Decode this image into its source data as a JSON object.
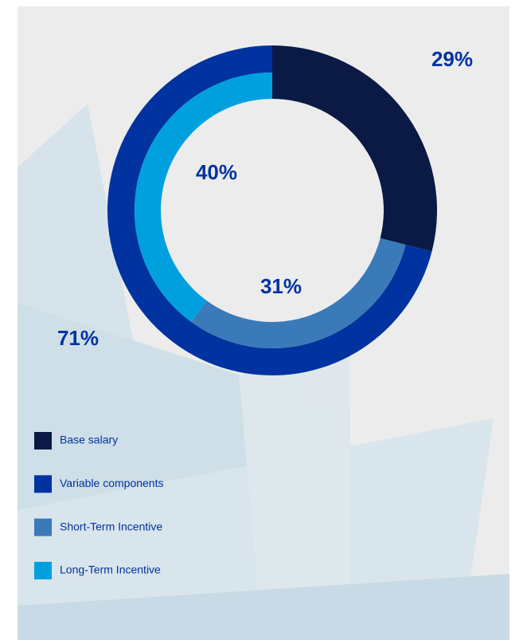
{
  "chart_data": {
    "type": "nested-donut",
    "rings": [
      {
        "categories": [
          "Base salary",
          "Variable components"
        ],
        "values": [
          29,
          71
        ],
        "value_labels": [
          "29%",
          "71%"
        ],
        "colors": [
          "#0a1a45",
          "#0033a0"
        ]
      },
      {
        "categories": [
          "Short-Term Incentive",
          "Long-Term Incentive"
        ],
        "values": [
          31,
          40
        ],
        "value_labels": [
          "31%",
          "40%"
        ],
        "colors": [
          "#3a7ab8",
          "#00a0df"
        ]
      }
    ]
  }
}
